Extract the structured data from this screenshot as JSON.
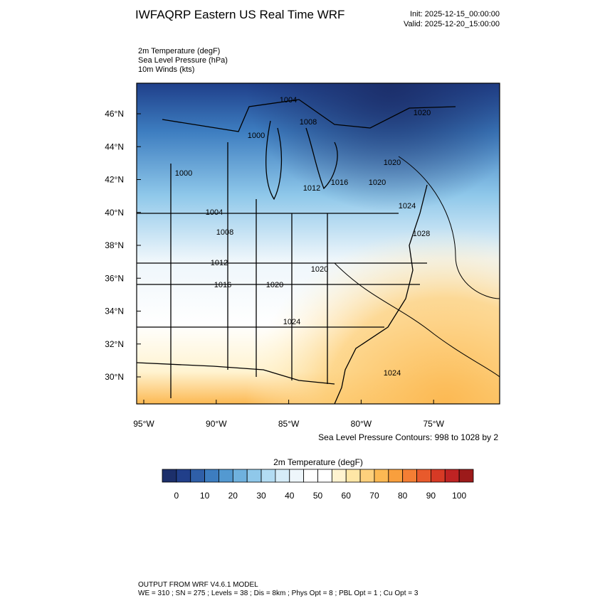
{
  "header": {
    "title": "IWFAQRP Eastern US Real Time WRF",
    "init": "Init: 2025-12-15_00:00:00",
    "valid": "Valid: 2025-12-20_15:00:00"
  },
  "fields": [
    "2m Temperature   (degF)",
    "Sea Level Pressure   (hPa)",
    "10m Winds   (kts)"
  ],
  "lat_labels": [
    "46°N",
    "44°N",
    "42°N",
    "40°N",
    "38°N",
    "36°N",
    "34°N",
    "32°N",
    "30°N"
  ],
  "lon_labels": [
    "95°W",
    "90°W",
    "85°W",
    "80°W",
    "75°W"
  ],
  "contour_labels": [
    "1004",
    "1008",
    "1000",
    "1020",
    "1000",
    "1020",
    "1016",
    "1020",
    "1012",
    "1004",
    "1024",
    "1008",
    "1028",
    "1012",
    "1020",
    "1016",
    "1020",
    "1024",
    "1024"
  ],
  "contour_note": "Sea Level Pressure Contours: 998 to 1028 by 2",
  "colorbar": {
    "title": "2m Temperature  (degF)",
    "labels": [
      "0",
      "10",
      "20",
      "30",
      "40",
      "50",
      "60",
      "70",
      "80",
      "90",
      "100"
    ],
    "colors": [
      "#1c2f6b",
      "#213f8a",
      "#2f5fa8",
      "#3d7dc0",
      "#5399d1",
      "#6fb1de",
      "#8fc8ea",
      "#b3dcf3",
      "#d6ecf8",
      "#eef6fb",
      "#ffffff",
      "#ffffff",
      "#fff3d0",
      "#fee6a6",
      "#fdd07c",
      "#fcb953",
      "#f99f3d",
      "#f47e34",
      "#e85a2c",
      "#d73a25",
      "#bf2323",
      "#9c1a1a"
    ]
  },
  "footer": {
    "line1": "OUTPUT FROM WRF V4.6.1 MODEL",
    "line2": "WE = 310 ; SN = 275 ; Levels = 38 ; Dis = 8km ; Phys Opt = 8 ; PBL Opt = 1 ; Cu Opt = 3"
  }
}
